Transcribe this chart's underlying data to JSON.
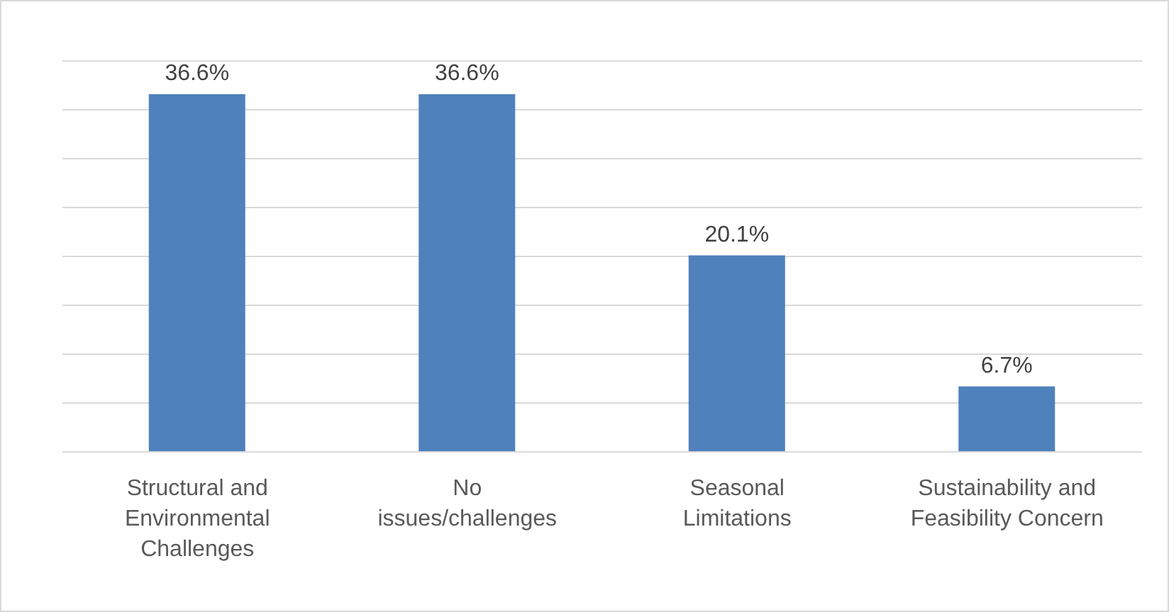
{
  "chart_data": {
    "type": "bar",
    "categories": [
      "Structural and Environmental Challenges",
      "No issues/challenges",
      "Seasonal Limitations",
      "Sustainability and Feasibility Concern"
    ],
    "values": [
      36.6,
      36.6,
      20.1,
      6.7
    ],
    "value_labels": [
      "36.6%",
      "36.6%",
      "20.1%",
      "6.7%"
    ],
    "color": "#4f81bd",
    "ylim": [
      0,
      40
    ],
    "yticks": [
      {
        "value": 0,
        "label": null
      },
      {
        "value": 5,
        "label": null
      },
      {
        "value": 10,
        "label": null
      },
      {
        "value": 15,
        "label": null
      },
      {
        "value": 20,
        "label": null
      },
      {
        "value": 25,
        "label": null
      },
      {
        "value": 30,
        "label": null
      },
      {
        "value": 35,
        "label": null
      },
      {
        "value": 40,
        "label": null
      }
    ],
    "grid": "y",
    "tick_labels": "x"
  }
}
